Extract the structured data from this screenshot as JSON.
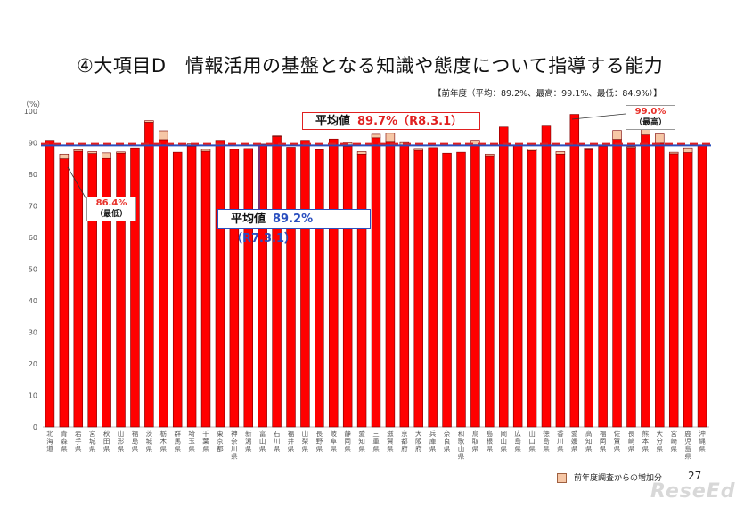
{
  "title": "④大項目D　情報活用の基盤となる知識や態度について指導する能力",
  "prev_note": "【前年度（平均：89.2%、最高：99.1%、最低：84.9%）】",
  "unit_label": "（%）",
  "avg_new": {
    "label": "平均値",
    "value": "89.7%（R8.3.1）"
  },
  "avg_old": {
    "label": "平均値",
    "value": "89.2%（R7.3.1）"
  },
  "callout_min": {
    "value": "86.4%",
    "tag": "（最低）"
  },
  "callout_max": {
    "value": "99.0%",
    "tag": "（最高）"
  },
  "legend_label": "前年度調査からの増加分",
  "page_number": "27",
  "logo": "ReseEd",
  "colors": {
    "bar": "#ff0000",
    "bar_edge": "#7a0000",
    "increase": "#f6c7a6",
    "avg_new": "#e02020",
    "avg_old": "#2a4fbf"
  },
  "chart_data": {
    "type": "bar",
    "ylim": [
      0,
      100
    ],
    "yticks": [
      0,
      10,
      20,
      30,
      40,
      50,
      60,
      70,
      80,
      90,
      100
    ],
    "grid": false,
    "categories": [
      "北海道",
      "青森県",
      "岩手県",
      "宮城県",
      "秋田県",
      "山形県",
      "福島県",
      "茨城県",
      "栃木県",
      "群馬県",
      "埼玉県",
      "千葉県",
      "東京都",
      "神奈川県",
      "新潟県",
      "富山県",
      "石川県",
      "福井県",
      "山梨県",
      "長野県",
      "岐阜県",
      "静岡県",
      "愛知県",
      "三重県",
      "滋賀県",
      "京都府",
      "大阪府",
      "兵庫県",
      "奈良県",
      "和歌山県",
      "鳥取県",
      "島根県",
      "岡山県",
      "広島県",
      "山口県",
      "徳島県",
      "香川県",
      "愛媛県",
      "高知県",
      "福岡県",
      "佐賀県",
      "長崎県",
      "熊本県",
      "大分県",
      "宮崎県",
      "鹿児島県",
      "沖縄県"
    ],
    "series": [
      {
        "name": "",
        "values": [
          90.8,
          84.9,
          87.3,
          86.6,
          85.0,
          86.7,
          88.4,
          96.5,
          91.0,
          87.0,
          88.9,
          87.3,
          90.8,
          87.9,
          88.2,
          89.6,
          92.0,
          88.6,
          90.8,
          87.8,
          91.2,
          88.9,
          86.4,
          91.6,
          90.2,
          89.2,
          87.6,
          88.5,
          86.7,
          87.0,
          89.4,
          85.9,
          95.0,
          89.2,
          87.5,
          95.3,
          86.4,
          99.0,
          87.8,
          88.9,
          91.1,
          88.5,
          92.5,
          89.9,
          86.5,
          86.9,
          89.1
        ]
      },
      {
        "name": "前年度調査からの増加分",
        "values": [
          0,
          1.5,
          0.5,
          0.6,
          1.8,
          0.4,
          0,
          0.5,
          2.8,
          0,
          0.8,
          0.6,
          0,
          0,
          0,
          0,
          0.2,
          0,
          0,
          0,
          0,
          1.1,
          0.8,
          1.1,
          2.8,
          0.9,
          0.6,
          0,
          0,
          0,
          1.4,
          0.5,
          0,
          0,
          0.5,
          0,
          0.8,
          0,
          0.5,
          0,
          2.8,
          0.3,
          2.6,
          2.9,
          0.5,
          1.5,
          0
        ]
      }
    ],
    "avg_lines": [
      89.7,
      89.2
    ]
  }
}
